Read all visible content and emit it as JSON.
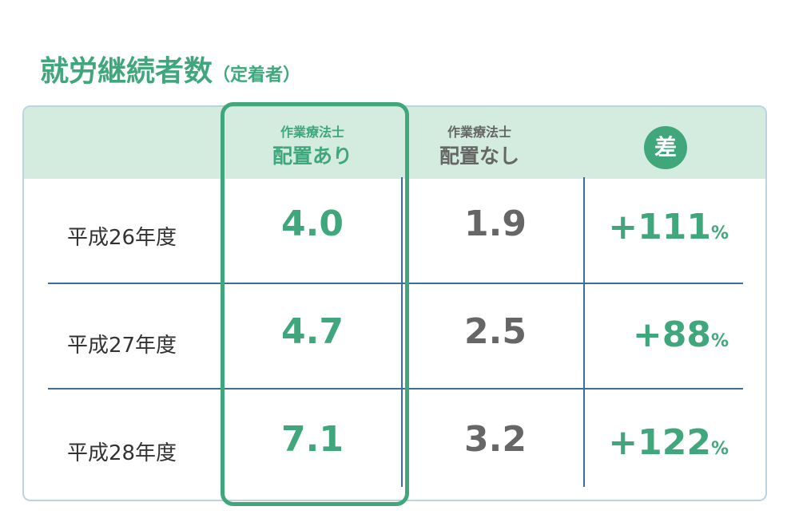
{
  "title": "就労継続者数",
  "subtitle": "（定着者）",
  "table": {
    "columns": [
      {
        "line1": "作業療法士",
        "line2": "配置あり"
      },
      {
        "line1": "作業療法士",
        "line2": "配置なし"
      },
      {
        "label": "差"
      }
    ],
    "rows": [
      {
        "label": "平成26年度",
        "with": "4.0",
        "without": "1.9",
        "diff": "+111",
        "unit": "%"
      },
      {
        "label": "平成27年度",
        "with": "4.7",
        "without": "2.5",
        "diff": "+88",
        "unit": "%"
      },
      {
        "label": "平成28年度",
        "with": "7.1",
        "without": "3.2",
        "diff": "+122",
        "unit": "%"
      }
    ]
  }
}
